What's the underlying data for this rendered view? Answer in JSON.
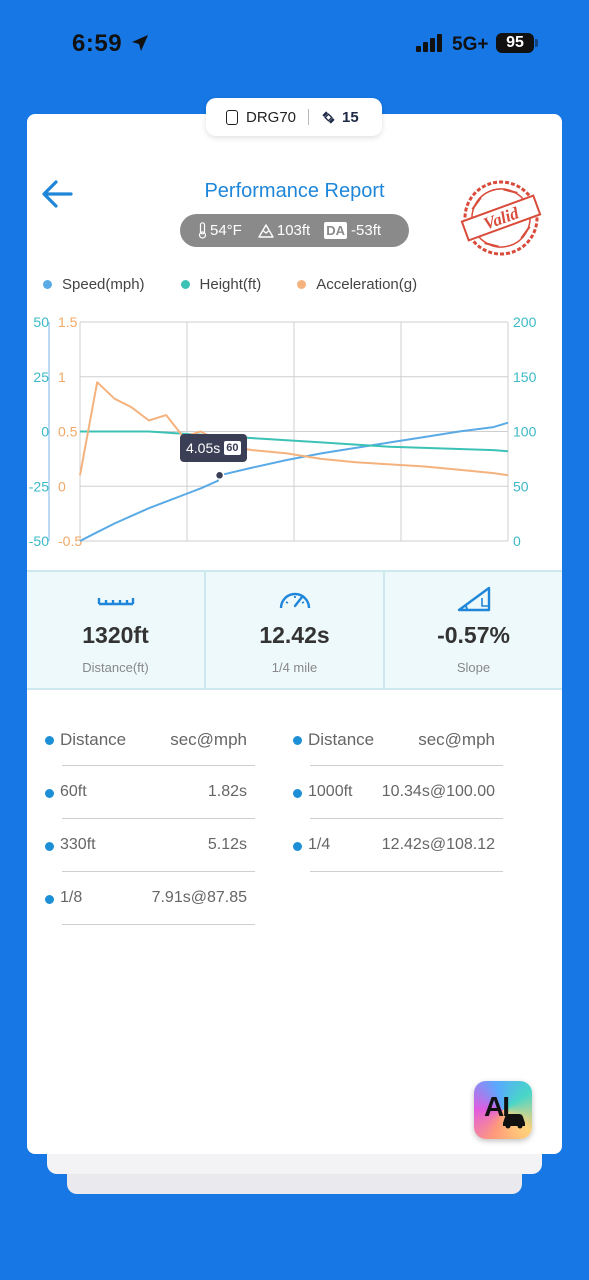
{
  "status_bar": {
    "time": "6:59",
    "network": "5G+",
    "battery": "95"
  },
  "device": {
    "name": "DRG70",
    "satellites": "15"
  },
  "header": {
    "title": "Performance Report",
    "stamp_text": "Valid"
  },
  "conditions": {
    "temperature": "54°F",
    "altitude": "103ft",
    "da_label": "DA",
    "density_altitude": "-53ft"
  },
  "legend": [
    {
      "label": "Speed(mph)",
      "color": "#5aaae6"
    },
    {
      "label": "Height(ft)",
      "color": "#3cc1b5"
    },
    {
      "label": "Acceleration(g)",
      "color": "#f4b27e"
    }
  ],
  "chart_data": {
    "type": "line",
    "x": [
      0,
      0.5,
      1,
      1.5,
      2,
      2.5,
      3,
      3.5,
      4,
      4.05,
      5,
      6,
      7,
      8,
      9,
      10,
      11,
      12,
      12.42
    ],
    "series": [
      {
        "name": "Speed(mph)",
        "axis": "right",
        "color": "#5aaae6",
        "values": [
          0,
          8,
          16,
          23,
          30,
          36,
          42,
          48,
          55,
          60,
          67,
          74,
          80,
          85,
          90,
          95,
          100,
          104,
          108
        ]
      },
      {
        "name": "Height(ft)",
        "axis": "left-outer",
        "color": "#3cc1b5",
        "values": [
          0,
          0,
          0,
          0,
          0,
          -0.5,
          -1,
          -1.5,
          -2,
          -2,
          -3,
          -4,
          -5,
          -6,
          -7,
          -7.5,
          -8,
          -8.5,
          -9
        ]
      },
      {
        "name": "Acceleration(g)",
        "axis": "left-inner",
        "color": "#f4b27e",
        "values": [
          0.1,
          0.95,
          0.8,
          0.72,
          0.6,
          0.65,
          0.45,
          0.5,
          0.42,
          0.38,
          0.33,
          0.3,
          0.25,
          0.22,
          0.2,
          0.18,
          0.15,
          0.12,
          0.1
        ]
      }
    ],
    "left_outer_ticks": [
      "50",
      "25",
      "0",
      "-25",
      "-50"
    ],
    "left_inner_ticks": [
      "1.5",
      "1",
      "0.5",
      "0",
      "-0.5"
    ],
    "right_ticks": [
      "200",
      "150",
      "100",
      "50",
      "0"
    ],
    "ylim_left_outer": [
      -50,
      50
    ],
    "ylim_left_inner": [
      -0.5,
      1.5
    ],
    "ylim_right": [
      0,
      200
    ],
    "grid": true,
    "tooltip": {
      "time": "4.05s",
      "speed": "60"
    }
  },
  "stats": [
    {
      "value": "1320ft",
      "label": "Distance(ft)",
      "icon": "ruler-icon"
    },
    {
      "value": "12.42s",
      "label": "1/4 mile",
      "icon": "speedometer-icon"
    },
    {
      "value": "-0.57%",
      "label": "Slope",
      "icon": "slope-icon"
    }
  ],
  "splits": {
    "header_name": "Distance",
    "header_value": "sec@mph",
    "left": [
      {
        "name": "60ft",
        "value": "1.82s"
      },
      {
        "name": "330ft",
        "value": "5.12s"
      },
      {
        "name": "1/8",
        "value": "7.91s@87.85"
      }
    ],
    "right": [
      {
        "name": "1000ft",
        "value": "10.34s@100.00"
      },
      {
        "name": "1/4",
        "value": "12.42s@108.12"
      }
    ]
  },
  "ai_button": {
    "label": "AI"
  }
}
